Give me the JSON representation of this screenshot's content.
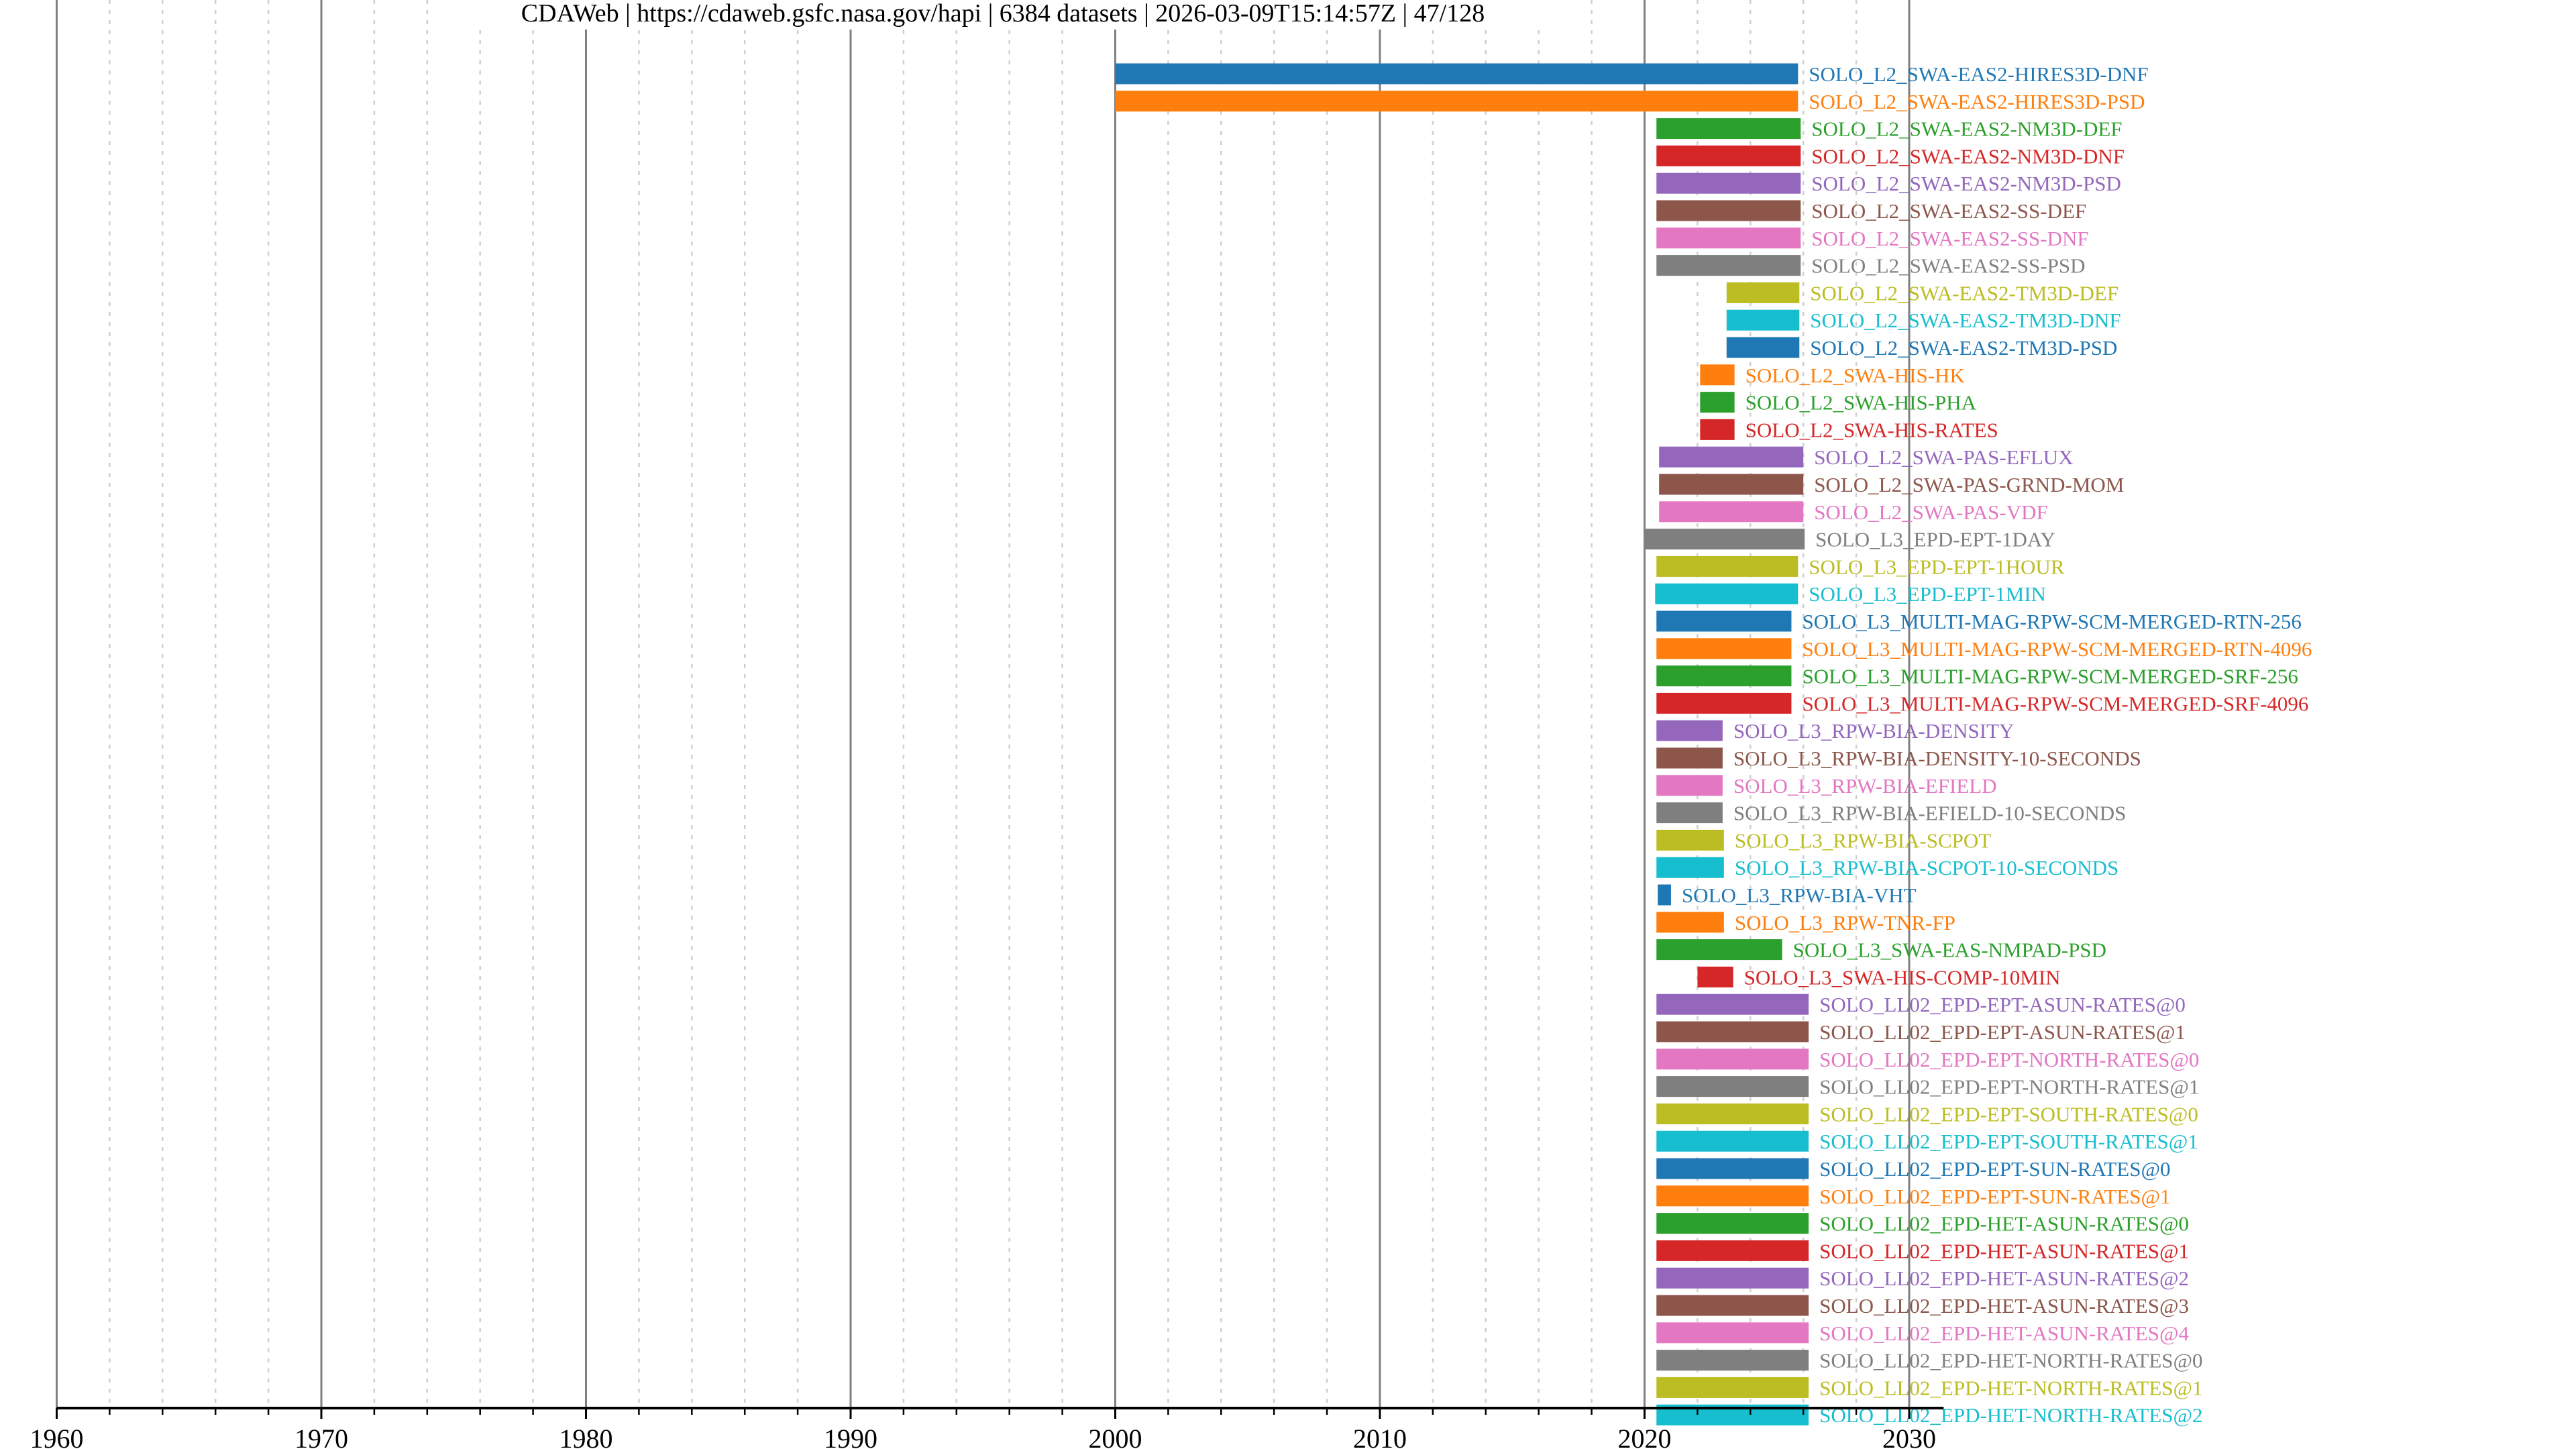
{
  "title": "CDAWeb | https://cdaweb.gsfc.nasa.gov/hapi | 6384 datasets | 2026-03-09T15:14:57Z | 47/128",
  "chart_data": {
    "type": "bar",
    "orientation": "horizontal-timeline",
    "title": "CDAWeb | https://cdaweb.gsfc.nasa.gov/hapi | 6384 datasets | 2026-03-09T15:14:57Z | 47/128",
    "xlabel": "",
    "ylabel": "",
    "xlim": [
      1960,
      2031.3
    ],
    "xticks": [
      1960,
      1970,
      1980,
      1990,
      2000,
      2010,
      2020,
      2030
    ],
    "minor_grid_step": 2,
    "grid": true,
    "palette": [
      "#1f77b4",
      "#ff7f0e",
      "#2ca02c",
      "#d62728",
      "#9467bd",
      "#8c564b",
      "#e377c2",
      "#7f7f7f",
      "#bcbd22",
      "#17becf"
    ],
    "series": [
      {
        "name": "SOLO_L2_SWA-EAS2-HIRES3D-DNF",
        "start": 2000.0,
        "end": 2025.8
      },
      {
        "name": "SOLO_L2_SWA-EAS2-HIRES3D-PSD",
        "start": 2000.0,
        "end": 2025.8
      },
      {
        "name": "SOLO_L2_SWA-EAS2-NM3D-DEF",
        "start": 2020.45,
        "end": 2025.9
      },
      {
        "name": "SOLO_L2_SWA-EAS2-NM3D-DNF",
        "start": 2020.45,
        "end": 2025.9
      },
      {
        "name": "SOLO_L2_SWA-EAS2-NM3D-PSD",
        "start": 2020.45,
        "end": 2025.9
      },
      {
        "name": "SOLO_L2_SWA-EAS2-SS-DEF",
        "start": 2020.45,
        "end": 2025.9
      },
      {
        "name": "SOLO_L2_SWA-EAS2-SS-DNF",
        "start": 2020.45,
        "end": 2025.9
      },
      {
        "name": "SOLO_L2_SWA-EAS2-SS-PSD",
        "start": 2020.45,
        "end": 2025.9
      },
      {
        "name": "SOLO_L2_SWA-EAS2-TM3D-DEF",
        "start": 2023.1,
        "end": 2025.85
      },
      {
        "name": "SOLO_L2_SWA-EAS2-TM3D-DNF",
        "start": 2023.1,
        "end": 2025.85
      },
      {
        "name": "SOLO_L2_SWA-EAS2-TM3D-PSD",
        "start": 2023.1,
        "end": 2025.85
      },
      {
        "name": "SOLO_L2_SWA-HIS-HK",
        "start": 2022.1,
        "end": 2023.4
      },
      {
        "name": "SOLO_L2_SWA-HIS-PHA",
        "start": 2022.1,
        "end": 2023.4
      },
      {
        "name": "SOLO_L2_SWA-HIS-RATES",
        "start": 2022.1,
        "end": 2023.4
      },
      {
        "name": "SOLO_L2_SWA-PAS-EFLUX",
        "start": 2020.55,
        "end": 2026.0
      },
      {
        "name": "SOLO_L2_SWA-PAS-GRND-MOM",
        "start": 2020.55,
        "end": 2026.0
      },
      {
        "name": "SOLO_L2_SWA-PAS-VDF",
        "start": 2020.55,
        "end": 2026.0
      },
      {
        "name": "SOLO_L3_EPD-EPT-1DAY",
        "start": 2020.0,
        "end": 2026.05
      },
      {
        "name": "SOLO_L3_EPD-EPT-1HOUR",
        "start": 2020.45,
        "end": 2025.8
      },
      {
        "name": "SOLO_L3_EPD-EPT-1MIN",
        "start": 2020.4,
        "end": 2025.8
      },
      {
        "name": "SOLO_L3_MULTI-MAG-RPW-SCM-MERGED-RTN-256",
        "start": 2020.45,
        "end": 2025.55
      },
      {
        "name": "SOLO_L3_MULTI-MAG-RPW-SCM-MERGED-RTN-4096",
        "start": 2020.45,
        "end": 2025.55
      },
      {
        "name": "SOLO_L3_MULTI-MAG-RPW-SCM-MERGED-SRF-256",
        "start": 2020.45,
        "end": 2025.55
      },
      {
        "name": "SOLO_L3_MULTI-MAG-RPW-SCM-MERGED-SRF-4096",
        "start": 2020.45,
        "end": 2025.55
      },
      {
        "name": "SOLO_L3_RPW-BIA-DENSITY",
        "start": 2020.45,
        "end": 2022.95
      },
      {
        "name": "SOLO_L3_RPW-BIA-DENSITY-10-SECONDS",
        "start": 2020.45,
        "end": 2022.95
      },
      {
        "name": "SOLO_L3_RPW-BIA-EFIELD",
        "start": 2020.45,
        "end": 2022.95
      },
      {
        "name": "SOLO_L3_RPW-BIA-EFIELD-10-SECONDS",
        "start": 2020.45,
        "end": 2022.95
      },
      {
        "name": "SOLO_L3_RPW-BIA-SCPOT",
        "start": 2020.45,
        "end": 2023.0
      },
      {
        "name": "SOLO_L3_RPW-BIA-SCPOT-10-SECONDS",
        "start": 2020.45,
        "end": 2023.0
      },
      {
        "name": "SOLO_L3_RPW-BIA-VHT",
        "start": 2020.5,
        "end": 2021.0
      },
      {
        "name": "SOLO_L3_RPW-TNR-FP",
        "start": 2020.45,
        "end": 2023.0
      },
      {
        "name": "SOLO_L3_SWA-EAS-NMPAD-PSD",
        "start": 2020.45,
        "end": 2025.2
      },
      {
        "name": "SOLO_L3_SWA-HIS-COMP-10MIN",
        "start": 2022.0,
        "end": 2023.35
      },
      {
        "name": "SOLO_LL02_EPD-EPT-ASUN-RATES@0",
        "start": 2020.45,
        "end": 2026.2
      },
      {
        "name": "SOLO_LL02_EPD-EPT-ASUN-RATES@1",
        "start": 2020.45,
        "end": 2026.2
      },
      {
        "name": "SOLO_LL02_EPD-EPT-NORTH-RATES@0",
        "start": 2020.45,
        "end": 2026.2
      },
      {
        "name": "SOLO_LL02_EPD-EPT-NORTH-RATES@1",
        "start": 2020.45,
        "end": 2026.2
      },
      {
        "name": "SOLO_LL02_EPD-EPT-SOUTH-RATES@0",
        "start": 2020.45,
        "end": 2026.2
      },
      {
        "name": "SOLO_LL02_EPD-EPT-SOUTH-RATES@1",
        "start": 2020.45,
        "end": 2026.2
      },
      {
        "name": "SOLO_LL02_EPD-EPT-SUN-RATES@0",
        "start": 2020.45,
        "end": 2026.2
      },
      {
        "name": "SOLO_LL02_EPD-EPT-SUN-RATES@1",
        "start": 2020.45,
        "end": 2026.2
      },
      {
        "name": "SOLO_LL02_EPD-HET-ASUN-RATES@0",
        "start": 2020.45,
        "end": 2026.2
      },
      {
        "name": "SOLO_LL02_EPD-HET-ASUN-RATES@1",
        "start": 2020.45,
        "end": 2026.2
      },
      {
        "name": "SOLO_LL02_EPD-HET-ASUN-RATES@2",
        "start": 2020.45,
        "end": 2026.2
      },
      {
        "name": "SOLO_LL02_EPD-HET-ASUN-RATES@3",
        "start": 2020.45,
        "end": 2026.2
      },
      {
        "name": "SOLO_LL02_EPD-HET-ASUN-RATES@4",
        "start": 2020.45,
        "end": 2026.2
      },
      {
        "name": "SOLO_LL02_EPD-HET-NORTH-RATES@0",
        "start": 2020.45,
        "end": 2026.2
      },
      {
        "name": "SOLO_LL02_EPD-HET-NORTH-RATES@1",
        "start": 2020.45,
        "end": 2026.2
      },
      {
        "name": "SOLO_LL02_EPD-HET-NORTH-RATES@2",
        "start": 2020.45,
        "end": 2026.2
      }
    ]
  }
}
